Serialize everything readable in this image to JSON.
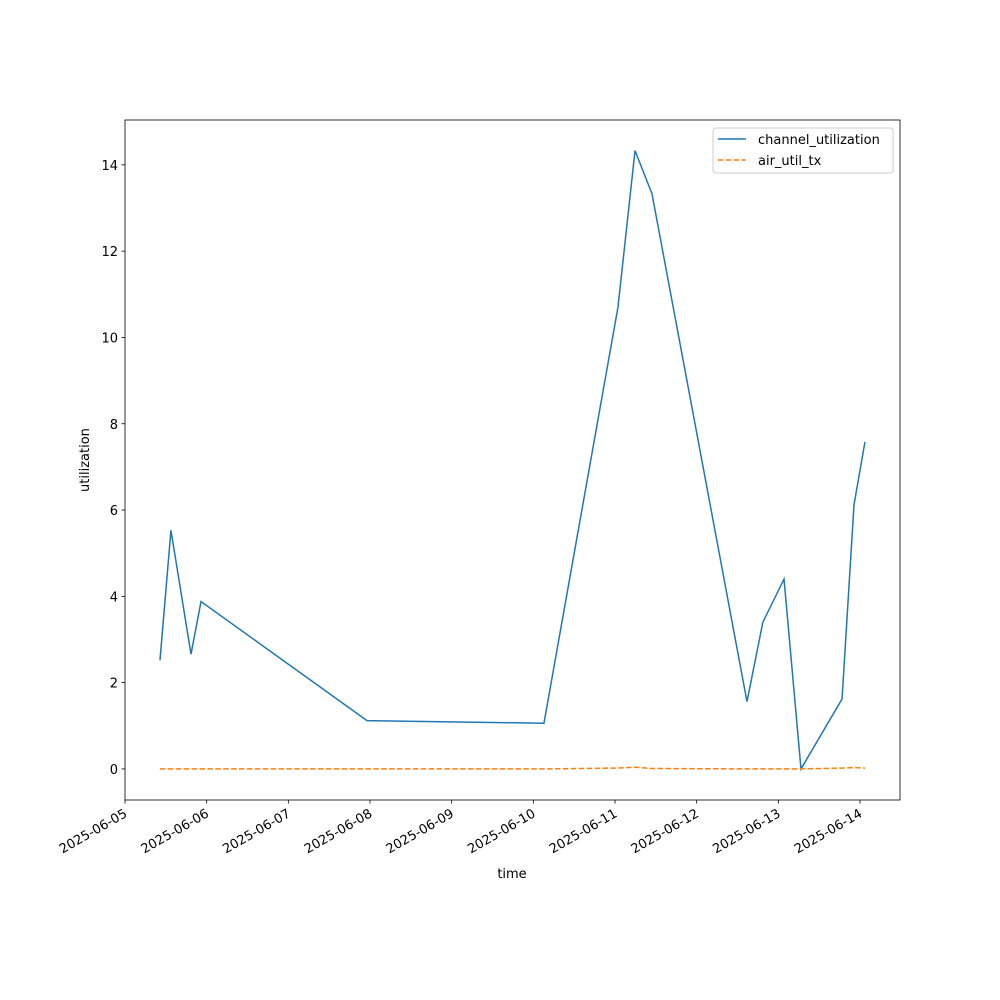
{
  "chart_data": {
    "type": "line",
    "xlabel": "time",
    "ylabel": "utilization",
    "x": [
      "2025-06-05T10:17",
      "2025-06-05T13:30",
      "2025-06-05T19:24",
      "2025-06-05T22:20",
      "2025-06-07T23:07",
      "2025-06-10T03:07",
      "2025-06-11T00:52",
      "2025-06-11T05:53",
      "2025-06-11T10:52",
      "2025-06-12T14:47",
      "2025-06-12T19:27",
      "2025-06-13T01:40",
      "2025-06-13T06:39",
      "2025-06-13T18:43",
      "2025-06-13T22:14",
      "2025-06-14T01:27"
    ],
    "series": [
      {
        "name": "channel_utilization",
        "color": "#1f77b4",
        "linestyle": "solid",
        "values": [
          2.52,
          5.53,
          2.66,
          3.88,
          1.12,
          1.06,
          10.7,
          14.33,
          13.33,
          1.56,
          3.4,
          4.4,
          0.0,
          1.62,
          6.12,
          7.58
        ]
      },
      {
        "name": "air_util_tx",
        "color": "#ff7f0e",
        "linestyle": "dashed",
        "values": [
          0.0,
          0.0,
          0.0,
          0.0,
          0.0,
          0.0,
          0.02,
          0.04,
          0.01,
          0.0,
          0.0,
          0.0,
          0.0,
          0.02,
          0.03,
          0.02
        ]
      }
    ],
    "xlim": [
      "2025-06-05T00:00",
      "2025-06-14T11:45"
    ],
    "xticks": [
      "2025-06-05",
      "2025-06-06",
      "2025-06-07",
      "2025-06-08",
      "2025-06-09",
      "2025-06-10",
      "2025-06-11",
      "2025-06-12",
      "2025-06-13",
      "2025-06-14"
    ],
    "ylim": [
      -0.72,
      15.04
    ],
    "yticks": [
      0,
      2,
      4,
      6,
      8,
      10,
      12,
      14
    ],
    "grid": false,
    "legend": "upper right"
  }
}
